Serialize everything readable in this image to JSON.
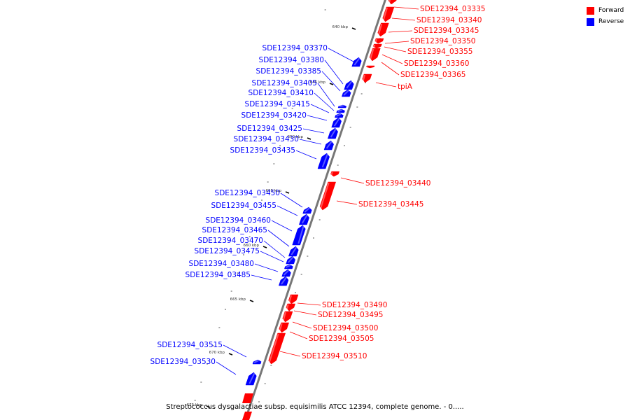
{
  "legend": [
    {
      "label": "Forward",
      "color": "#ff0000"
    },
    {
      "label": "Reverse",
      "color": "#0000ff"
    }
  ],
  "caption": "Streptococcus dysgalactiae subsp. equisimilis ATCC 12394, complete genome. - 0.....",
  "colors": {
    "forward": "#ff0000",
    "reverse": "#0000ff",
    "backbone": "#777777"
  },
  "ticks": [
    {
      "label": "640 kbp"
    },
    {
      "label": "645 kbp"
    },
    {
      "label": "650 kbp"
    },
    {
      "label": "655 kbp"
    },
    {
      "label": "660 kbp"
    },
    {
      "label": "665 kbp"
    },
    {
      "label": "670 kbp"
    },
    {
      "label": "675 kbp"
    }
  ],
  "genes": [
    {
      "name": "SDE12394_03335",
      "strand": "forward"
    },
    {
      "name": "SDE12394_03340",
      "strand": "forward"
    },
    {
      "name": "SDE12394_03345",
      "strand": "forward"
    },
    {
      "name": "SDE12394_03350",
      "strand": "forward"
    },
    {
      "name": "SDE12394_03355",
      "strand": "forward"
    },
    {
      "name": "SDE12394_03360",
      "strand": "forward"
    },
    {
      "name": "SDE12394_03365",
      "strand": "forward"
    },
    {
      "name": "tpiA",
      "strand": "forward"
    },
    {
      "name": "SDE12394_03370",
      "strand": "reverse"
    },
    {
      "name": "SDE12394_03380",
      "strand": "reverse"
    },
    {
      "name": "SDE12394_03385",
      "strand": "reverse"
    },
    {
      "name": "SDE12394_03405",
      "strand": "reverse"
    },
    {
      "name": "SDE12394_03410",
      "strand": "reverse"
    },
    {
      "name": "SDE12394_03415",
      "strand": "reverse"
    },
    {
      "name": "SDE12394_03420",
      "strand": "reverse"
    },
    {
      "name": "SDE12394_03425",
      "strand": "reverse"
    },
    {
      "name": "SDE12394_03430",
      "strand": "reverse"
    },
    {
      "name": "SDE12394_03435",
      "strand": "reverse"
    },
    {
      "name": "SDE12394_03440",
      "strand": "forward"
    },
    {
      "name": "SDE12394_03445",
      "strand": "forward"
    },
    {
      "name": "SDE12394_03450",
      "strand": "reverse"
    },
    {
      "name": "SDE12394_03455",
      "strand": "reverse"
    },
    {
      "name": "SDE12394_03460",
      "strand": "reverse"
    },
    {
      "name": "SDE12394_03465",
      "strand": "reverse"
    },
    {
      "name": "SDE12394_03470",
      "strand": "reverse"
    },
    {
      "name": "SDE12394_03475",
      "strand": "reverse"
    },
    {
      "name": "SDE12394_03480",
      "strand": "reverse"
    },
    {
      "name": "SDE12394_03485",
      "strand": "reverse"
    },
    {
      "name": "SDE12394_03490",
      "strand": "forward"
    },
    {
      "name": "SDE12394_03495",
      "strand": "forward"
    },
    {
      "name": "SDE12394_03500",
      "strand": "forward"
    },
    {
      "name": "SDE12394_03505",
      "strand": "forward"
    },
    {
      "name": "SDE12394_03510",
      "strand": "forward"
    },
    {
      "name": "SDE12394_03515",
      "strand": "reverse"
    },
    {
      "name": "SDE12394_03530",
      "strand": "reverse"
    }
  ]
}
